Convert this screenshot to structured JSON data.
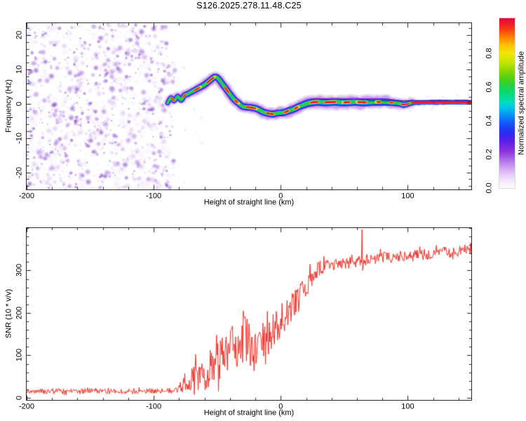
{
  "title": "S126.2025.278.11.48.C25",
  "chart_data": [
    {
      "type": "heatmap",
      "description": "Range-Doppler spectrogram: purple random speckle noise left of -85 km, then a colored meteor head-echo Doppler trace that rises to ~8 Hz near -52 km, dips to ~-3 Hz near -6 km and levels near 0.4 Hz out to 150 km",
      "xlabel": "Height of straight line (km)",
      "ylabel": "Frequency (Hz)",
      "xlim": [
        -200,
        150
      ],
      "ylim": [
        -25,
        23.5
      ],
      "x_minor_step": 20,
      "y_minor_step": 2,
      "x_ticks": [
        {
          "value": -200,
          "label": "-200"
        },
        {
          "value": -100,
          "label": "-100"
        },
        {
          "value": 0,
          "label": "0"
        },
        {
          "value": 100,
          "label": "100"
        }
      ],
      "y_ticks": [
        {
          "value": 20,
          "label": "20"
        },
        {
          "value": 10,
          "label": "10"
        },
        {
          "value": 0,
          "label": "0"
        },
        {
          "value": -10,
          "label": "-10"
        },
        {
          "value": -20,
          "label": "-20"
        }
      ],
      "noise_region": {
        "x_start_km": -200,
        "x_end_km": -85,
        "palette": [
          [
            236,
            224,
            250,
            0.5,
            0.34
          ],
          [
            205,
            168,
            240,
            0.55,
            0.33
          ],
          [
            150,
            90,
            215,
            0.6,
            0.22
          ],
          [
            104,
            38,
            188,
            0.65,
            0.11
          ]
        ]
      },
      "trace": {
        "points": [
          {
            "x": -89,
            "f": 0.2,
            "w": 0.7
          },
          {
            "x": -86.5,
            "f": 1.7,
            "w": 0.75
          },
          {
            "x": -84,
            "f": 0.9,
            "w": 0.8
          },
          {
            "x": -81,
            "f": 2.1,
            "w": 0.8
          },
          {
            "x": -78.5,
            "f": 1.1,
            "w": 0.85
          },
          {
            "x": -76,
            "f": 2.4,
            "w": 0.85
          },
          {
            "x": -73,
            "f": 2.9,
            "w": 0.9
          },
          {
            "x": -70,
            "f": 3.5,
            "w": 0.9
          },
          {
            "x": -67,
            "f": 4.1,
            "w": 0.95
          },
          {
            "x": -64,
            "f": 4.7,
            "w": 0.95
          },
          {
            "x": -61,
            "f": 5.3,
            "w": 1
          },
          {
            "x": -58,
            "f": 6.1,
            "w": 1
          },
          {
            "x": -55,
            "f": 7.0,
            "w": 1
          },
          {
            "x": -52,
            "f": 7.8,
            "w": 1
          },
          {
            "x": -50,
            "f": 7.6,
            "w": 1
          },
          {
            "x": -48,
            "f": 6.8,
            "w": 1
          },
          {
            "x": -45,
            "f": 5.3,
            "w": 1
          },
          {
            "x": -42,
            "f": 3.8,
            "w": 1
          },
          {
            "x": -39,
            "f": 2.3,
            "w": 1
          },
          {
            "x": -36,
            "f": 1.0,
            "w": 1
          },
          {
            "x": -33,
            "f": 0.1,
            "w": 1
          },
          {
            "x": -30,
            "f": -0.8,
            "w": 1
          },
          {
            "x": -26,
            "f": -1.0,
            "w": 1.05
          },
          {
            "x": -22,
            "f": -1.2,
            "w": 1.05
          },
          {
            "x": -18,
            "f": -1.6,
            "w": 1.05
          },
          {
            "x": -14,
            "f": -2.4,
            "w": 1.05
          },
          {
            "x": -10,
            "f": -2.8,
            "w": 1.05
          },
          {
            "x": -6,
            "f": -3.0,
            "w": 1.05
          },
          {
            "x": -2,
            "f": -2.7,
            "w": 1.05
          },
          {
            "x": 2,
            "f": -2.6,
            "w": 1.05
          },
          {
            "x": 6,
            "f": -2.1,
            "w": 1.1
          },
          {
            "x": 10,
            "f": -1.6,
            "w": 1.1
          },
          {
            "x": 14,
            "f": -0.9,
            "w": 1.1
          },
          {
            "x": 18,
            "f": -0.3,
            "w": 1.15
          },
          {
            "x": 22,
            "f": 0.2,
            "w": 1.2
          },
          {
            "x": 28,
            "f": 0.5,
            "w": 1.2
          },
          {
            "x": 35,
            "f": 0.4,
            "w": 1.2
          },
          {
            "x": 42,
            "f": 0.5,
            "w": 1.2
          },
          {
            "x": 50,
            "f": 0.4,
            "w": 1.2
          },
          {
            "x": 58,
            "f": 0.5,
            "w": 1.2
          },
          {
            "x": 66,
            "f": 0.4,
            "w": 1.2
          },
          {
            "x": 74,
            "f": 0.5,
            "w": 1.15
          },
          {
            "x": 82,
            "f": 0.5,
            "w": 1.1
          },
          {
            "x": 88,
            "f": 0.3,
            "w": 1.0
          },
          {
            "x": 93,
            "f": 0.1,
            "w": 0.95
          },
          {
            "x": 97,
            "f": -0.3,
            "w": 0.9
          },
          {
            "x": 101,
            "f": 0.1,
            "w": 0.85
          },
          {
            "x": 105,
            "f": 0.35,
            "w": 0.85
          },
          {
            "x": 115,
            "f": 0.4,
            "w": 0.85
          },
          {
            "x": 125,
            "f": 0.45,
            "w": 0.85
          },
          {
            "x": 135,
            "f": 0.4,
            "w": 0.85
          },
          {
            "x": 143,
            "f": 0.45,
            "w": 0.85
          },
          {
            "x": 150,
            "f": 0.4,
            "w": 0.85
          }
        ],
        "dash_zone_end_km": 103,
        "fit_line": {
          "from_km": 69,
          "to_km": 150,
          "f": 0.95,
          "color": "#1a1a99"
        }
      },
      "colorbar": {
        "label": "Normalized spectral amplitude",
        "range": [
          0,
          1.01
        ],
        "ticks": [
          {
            "value": 0.0,
            "label": "0.0"
          },
          {
            "value": 0.2,
            "label": "0.2"
          },
          {
            "value": 0.4,
            "label": "0.4"
          },
          {
            "value": 0.6,
            "label": "0.6"
          },
          {
            "value": 0.8,
            "label": "0.8"
          }
        ],
        "stops": [
          [
            0.0,
            "#ffffff"
          ],
          [
            0.05,
            "#f2e4fb"
          ],
          [
            0.1,
            "#ddb9f5"
          ],
          [
            0.16,
            "#b478ea"
          ],
          [
            0.22,
            "#8a33dd"
          ],
          [
            0.28,
            "#5c1fe6"
          ],
          [
            0.33,
            "#2a2cf0"
          ],
          [
            0.38,
            "#1453f8"
          ],
          [
            0.43,
            "#0a8cf8"
          ],
          [
            0.47,
            "#00bff0"
          ],
          [
            0.51,
            "#00ddc0"
          ],
          [
            0.55,
            "#00dd88"
          ],
          [
            0.6,
            "#1ed34d"
          ],
          [
            0.65,
            "#4ecf17"
          ],
          [
            0.7,
            "#8cda00"
          ],
          [
            0.75,
            "#c8e600"
          ],
          [
            0.8,
            "#f2e800"
          ],
          [
            0.85,
            "#ffc400"
          ],
          [
            0.9,
            "#ff7d00"
          ],
          [
            0.95,
            "#fb3614"
          ],
          [
            1.0,
            "#ea0838"
          ]
        ]
      }
    },
    {
      "type": "line",
      "description": "SNR vs height: flat noisy baseline ~15 until -80 km, spiky rise between -75 and 0 km, plateau ~320-350 from +30 to +150 km with a sharp spike to ~396 at +64 km",
      "xlabel": "Height of straight line (km)",
      "ylabel": "SNR (10 * v/v)",
      "xlim": [
        -200,
        150
      ],
      "ylim": [
        -5,
        400
      ],
      "x_minor_step": 20,
      "y_minor_step": 20,
      "line_color": "#ee2e24",
      "x_ticks": [
        {
          "value": -200,
          "label": "-200"
        },
        {
          "value": -100,
          "label": "-100"
        },
        {
          "value": 0,
          "label": "0"
        },
        {
          "value": 100,
          "label": "100"
        }
      ],
      "y_ticks": [
        {
          "value": 0,
          "label": "0"
        },
        {
          "value": 100,
          "label": "100"
        },
        {
          "value": 200,
          "label": "200"
        },
        {
          "value": 300,
          "label": "300"
        }
      ],
      "series": [
        {
          "name": "SNR",
          "keyframes": [
            {
              "x": -200,
              "m": 15,
              "a": 6
            },
            {
              "x": -185,
              "m": 16,
              "a": 7
            },
            {
              "x": -170,
              "m": 15,
              "a": 6
            },
            {
              "x": -155,
              "m": 16,
              "a": 7
            },
            {
              "x": -140,
              "m": 16,
              "a": 6
            },
            {
              "x": -125,
              "m": 15,
              "a": 6
            },
            {
              "x": -110,
              "m": 16,
              "a": 7
            },
            {
              "x": -100,
              "m": 16,
              "a": 6
            },
            {
              "x": -92,
              "m": 16,
              "a": 6
            },
            {
              "x": -86,
              "m": 17,
              "a": 7
            },
            {
              "x": -81,
              "m": 19,
              "a": 9
            },
            {
              "x": -77,
              "m": 28,
              "a": 18
            },
            {
              "x": -74,
              "m": 42,
              "a": 30
            },
            {
              "x": -71,
              "m": 38,
              "a": 26
            },
            {
              "x": -68,
              "m": 50,
              "a": 38
            },
            {
              "x": -65,
              "m": 44,
              "a": 30
            },
            {
              "x": -62,
              "m": 52,
              "a": 36
            },
            {
              "x": -59,
              "m": 60,
              "a": 44
            },
            {
              "x": -56,
              "m": 66,
              "a": 48
            },
            {
              "x": -53,
              "m": 78,
              "a": 54
            },
            {
              "x": -50,
              "m": 92,
              "a": 62
            },
            {
              "x": -47,
              "m": 100,
              "a": 62
            },
            {
              "x": -44,
              "m": 108,
              "a": 60
            },
            {
              "x": -41,
              "m": 104,
              "a": 58
            },
            {
              "x": -38,
              "m": 112,
              "a": 56
            },
            {
              "x": -35,
              "m": 122,
              "a": 56
            },
            {
              "x": -32,
              "m": 132,
              "a": 58
            },
            {
              "x": -29,
              "m": 144,
              "a": 64
            },
            {
              "x": -27,
              "m": 148,
              "a": 68
            },
            {
              "x": -25,
              "m": 128,
              "a": 62
            },
            {
              "x": -23,
              "m": 108,
              "a": 54
            },
            {
              "x": -21,
              "m": 100,
              "a": 46
            },
            {
              "x": -19,
              "m": 118,
              "a": 44
            },
            {
              "x": -17,
              "m": 128,
              "a": 42
            },
            {
              "x": -15,
              "m": 134,
              "a": 40
            },
            {
              "x": -13,
              "m": 138,
              "a": 40
            },
            {
              "x": -11,
              "m": 142,
              "a": 40
            },
            {
              "x": -9,
              "m": 148,
              "a": 40
            },
            {
              "x": -7,
              "m": 154,
              "a": 40
            },
            {
              "x": -5,
              "m": 162,
              "a": 40
            },
            {
              "x": -3,
              "m": 170,
              "a": 40
            },
            {
              "x": -1,
              "m": 178,
              "a": 40
            },
            {
              "x": 1,
              "m": 186,
              "a": 40
            },
            {
              "x": 3,
              "m": 194,
              "a": 38
            },
            {
              "x": 5,
              "m": 200,
              "a": 36
            },
            {
              "x": 7,
              "m": 208,
              "a": 36
            },
            {
              "x": 9,
              "m": 214,
              "a": 36
            },
            {
              "x": 11,
              "m": 220,
              "a": 34
            },
            {
              "x": 13,
              "m": 228,
              "a": 34
            },
            {
              "x": 15,
              "m": 238,
              "a": 32
            },
            {
              "x": 17,
              "m": 248,
              "a": 30
            },
            {
              "x": 19,
              "m": 258,
              "a": 28
            },
            {
              "x": 21,
              "m": 268,
              "a": 26
            },
            {
              "x": 23,
              "m": 278,
              "a": 24
            },
            {
              "x": 25,
              "m": 288,
              "a": 22
            },
            {
              "x": 27,
              "m": 296,
              "a": 20
            },
            {
              "x": 29,
              "m": 302,
              "a": 18
            },
            {
              "x": 31,
              "m": 306,
              "a": 17
            },
            {
              "x": 33,
              "m": 308,
              "a": 16
            },
            {
              "x": 36,
              "m": 311,
              "a": 15
            },
            {
              "x": 39,
              "m": 313,
              "a": 15
            },
            {
              "x": 42,
              "m": 314,
              "a": 15
            },
            {
              "x": 45,
              "m": 316,
              "a": 14
            },
            {
              "x": 48,
              "m": 317,
              "a": 14
            },
            {
              "x": 51,
              "m": 318,
              "a": 14
            },
            {
              "x": 54,
              "m": 319,
              "a": 14
            },
            {
              "x": 57,
              "m": 320,
              "a": 14
            },
            {
              "x": 60,
              "m": 321,
              "a": 13
            },
            {
              "x": 62,
              "m": 322,
              "a": 13
            },
            {
              "x": 63.5,
              "m": 324,
              "a": 8
            },
            {
              "x": 64,
              "m": 396,
              "a": 2
            },
            {
              "x": 64.5,
              "m": 300,
              "a": 6
            },
            {
              "x": 65.5,
              "m": 318,
              "a": 10
            },
            {
              "x": 67,
              "m": 324,
              "a": 13
            },
            {
              "x": 70,
              "m": 326,
              "a": 13
            },
            {
              "x": 74,
              "m": 328,
              "a": 13
            },
            {
              "x": 78,
              "m": 330,
              "a": 13
            },
            {
              "x": 82,
              "m": 331,
              "a": 13
            },
            {
              "x": 86,
              "m": 331,
              "a": 13
            },
            {
              "x": 90,
              "m": 331,
              "a": 13
            },
            {
              "x": 94,
              "m": 333,
              "a": 12
            },
            {
              "x": 98,
              "m": 334,
              "a": 12
            },
            {
              "x": 103,
              "m": 336,
              "a": 12
            },
            {
              "x": 108,
              "m": 337,
              "a": 12
            },
            {
              "x": 113,
              "m": 338,
              "a": 13
            },
            {
              "x": 118,
              "m": 340,
              "a": 13
            },
            {
              "x": 123,
              "m": 341,
              "a": 13
            },
            {
              "x": 128,
              "m": 342,
              "a": 14
            },
            {
              "x": 133,
              "m": 344,
              "a": 14
            },
            {
              "x": 138,
              "m": 345,
              "a": 14
            },
            {
              "x": 143,
              "m": 347,
              "a": 13
            },
            {
              "x": 147,
              "m": 349,
              "a": 12
            },
            {
              "x": 150,
              "m": 350,
              "a": 10
            }
          ]
        }
      ]
    }
  ]
}
